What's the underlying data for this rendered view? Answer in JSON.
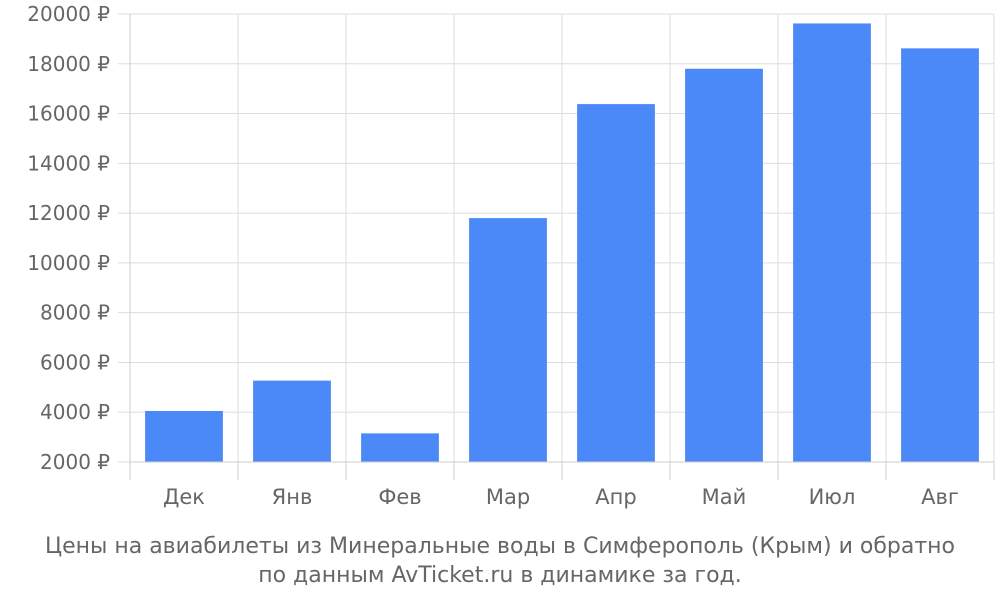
{
  "chart_data": {
    "type": "bar",
    "categories": [
      "Дек",
      "Янв",
      "Фев",
      "Мар",
      "Апр",
      "Май",
      "Июл",
      "Авг"
    ],
    "values": [
      4050,
      5270,
      3150,
      11800,
      16380,
      17800,
      19620,
      18620
    ],
    "y_ticks": [
      2000,
      4000,
      6000,
      8000,
      10000,
      12000,
      14000,
      16000,
      18000,
      20000
    ],
    "y_tick_suffix": " ₽",
    "ylim": [
      2000,
      20000
    ],
    "grid": true,
    "bar_color": "#4b89f8",
    "title": "",
    "xlabel": "",
    "ylabel": ""
  },
  "caption": {
    "line1": "Цены на авиабилеты из Минеральные воды в Симферополь (Крым) и обратно",
    "line2": "по данным AvTicket.ru в динамике за год."
  }
}
